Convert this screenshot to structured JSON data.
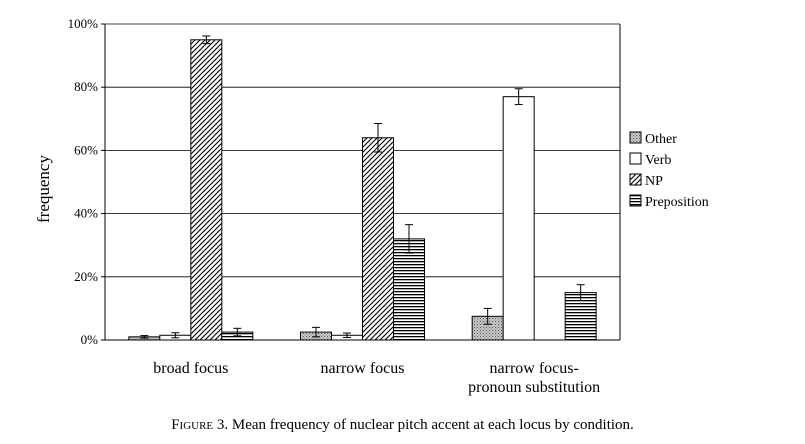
{
  "chart_data": {
    "type": "bar",
    "ylabel": "frequency",
    "ylim": [
      0,
      100
    ],
    "yticks": [
      "0%",
      "20%",
      "40%",
      "60%",
      "80%",
      "100%"
    ],
    "ytick_values": [
      0,
      20,
      40,
      60,
      80,
      100
    ],
    "grid": "horizontal",
    "legend_position": "right",
    "categories": [
      [
        "broad focus"
      ],
      [
        "narrow focus"
      ],
      [
        "narrow focus-",
        "pronoun substitution"
      ]
    ],
    "series": [
      {
        "name": "Other",
        "pattern": "dotted",
        "values": [
          1,
          2.5,
          7.5
        ],
        "errors": [
          0.4,
          1.5,
          2.5
        ]
      },
      {
        "name": "Verb",
        "pattern": "plain",
        "values": [
          1.5,
          1.5,
          77
        ],
        "errors": [
          0.8,
          0.7,
          2.5
        ]
      },
      {
        "name": "NP",
        "pattern": "diagonal",
        "values": [
          95,
          64,
          0
        ],
        "errors": [
          1.2,
          4.5,
          0
        ]
      },
      {
        "name": "Preposition",
        "pattern": "horizontal",
        "values": [
          2.5,
          32,
          15
        ],
        "errors": [
          1.2,
          4.5,
          2.5
        ]
      }
    ]
  },
  "caption": {
    "figure_label": "Figure 3.",
    "text": " Mean frequency of nuclear pitch accent at each locus by condition."
  }
}
